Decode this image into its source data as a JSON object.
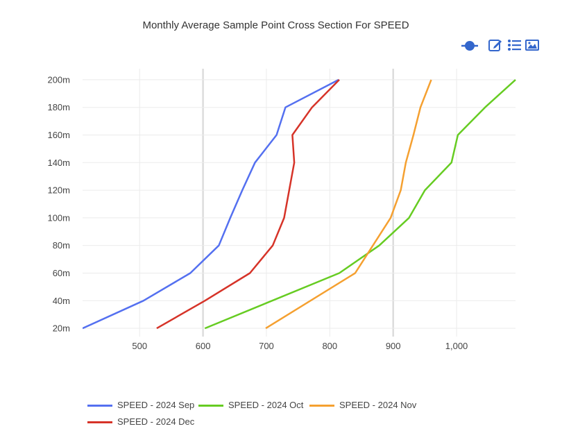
{
  "title": "Monthly Average Sample Point Cross Section For SPEED",
  "toolbar": {
    "icons": [
      "toggle-icon",
      "edit-icon",
      "list-icon",
      "image-icon"
    ],
    "accent": "#3366cc"
  },
  "chart_data": {
    "type": "line",
    "title": "Monthly Average Sample Point Cross Section For SPEED",
    "xlabel": "",
    "ylabel": "",
    "xlim": [
      410,
      1093
    ],
    "ylim": [
      14,
      208
    ],
    "x_ticks": [
      500,
      600,
      700,
      800,
      900,
      1000
    ],
    "x_tick_labels": [
      "500",
      "600",
      "700",
      "800",
      "900",
      "1,000"
    ],
    "y_ticks": [
      20,
      40,
      60,
      80,
      100,
      120,
      140,
      160,
      180,
      200
    ],
    "y_tick_labels": [
      "20m",
      "40m",
      "60m",
      "80m",
      "100m",
      "120m",
      "140m",
      "160m",
      "180m",
      "200m"
    ],
    "grid": true,
    "legend_position": "bottom",
    "series": [
      {
        "name": "SPEED - 2024 Sep",
        "color": "#5470f0",
        "x": [
          410,
          506,
          580,
          625,
          643,
          662,
          682,
          716,
          730,
          814
        ],
        "y": [
          20,
          40,
          60,
          80,
          100,
          120,
          140,
          160,
          180,
          200
        ]
      },
      {
        "name": "SPEED - 2024 Oct",
        "color": "#66cc22",
        "x": [
          603,
          815,
          878,
          925,
          950,
          992,
          1002,
          1045,
          1093
        ],
        "y": [
          20,
          60,
          80,
          100,
          120,
          140,
          160,
          180,
          200
        ]
      },
      {
        "name": "SPEED - 2024 Nov",
        "color": "#f5a030",
        "x": [
          699,
          840,
          896,
          912,
          920,
          932,
          943,
          960
        ],
        "y": [
          20,
          60,
          100,
          120,
          140,
          160,
          180,
          200
        ]
      },
      {
        "name": "SPEED - 2024 Dec",
        "color": "#d63328",
        "x": [
          527,
          603,
          674,
          710,
          728,
          736,
          744,
          741,
          772,
          815
        ],
        "y": [
          20,
          40,
          60,
          80,
          100,
          120,
          140,
          160,
          180,
          200
        ]
      }
    ]
  }
}
